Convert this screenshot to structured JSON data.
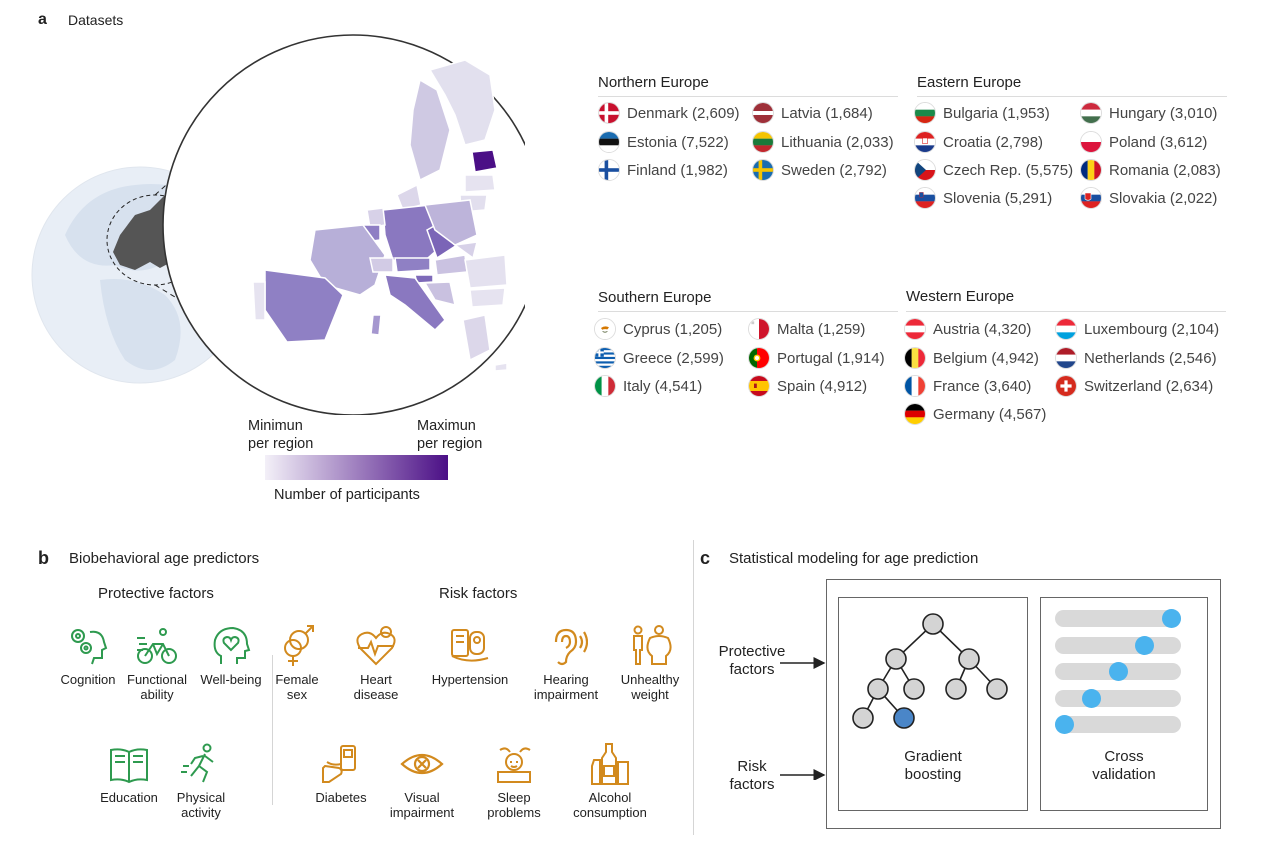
{
  "panel_a": {
    "letter": "a",
    "title": "Datasets",
    "regions": [
      {
        "name": "Northern Europe",
        "countries": [
          {
            "label": "Denmark (2,609)",
            "flag": "denmark"
          },
          {
            "label": "Latvia (1,684)",
            "flag": "latvia"
          },
          {
            "label": "Estonia (7,522)",
            "flag": "estonia"
          },
          {
            "label": "Lithuania (2,033)",
            "flag": "lithuania"
          },
          {
            "label": "Finland (1,982)",
            "flag": "finland"
          },
          {
            "label": "Sweden (2,792)",
            "flag": "sweden"
          }
        ]
      },
      {
        "name": "Eastern Europe",
        "countries": [
          {
            "label": "Bulgaria (1,953)",
            "flag": "bulgaria"
          },
          {
            "label": "Hungary (3,010)",
            "flag": "hungary"
          },
          {
            "label": "Croatia (2,798)",
            "flag": "croatia"
          },
          {
            "label": "Poland (3,612)",
            "flag": "poland"
          },
          {
            "label": "Czech Rep. (5,575)",
            "flag": "czech"
          },
          {
            "label": "Romania (2,083)",
            "flag": "romania"
          },
          {
            "label": "Slovenia (5,291)",
            "flag": "slovenia"
          },
          {
            "label": "Slovakia (2,022)",
            "flag": "slovakia"
          }
        ]
      },
      {
        "name": "Southern Europe",
        "countries": [
          {
            "label": "Cyprus (1,205)",
            "flag": "cyprus"
          },
          {
            "label": "Malta (1,259)",
            "flag": "malta"
          },
          {
            "label": "Greece (2,599)",
            "flag": "greece"
          },
          {
            "label": "Portugal (1,914)",
            "flag": "portugal"
          },
          {
            "label": "Italy (4,541)",
            "flag": "italy"
          },
          {
            "label": "Spain (4,912)",
            "flag": "spain"
          }
        ]
      },
      {
        "name": "Western Europe",
        "countries": [
          {
            "label": "Austria (4,320)",
            "flag": "austria"
          },
          {
            "label": "Luxembourg (2,104)",
            "flag": "luxembourg"
          },
          {
            "label": "Belgium (4,942)",
            "flag": "belgium"
          },
          {
            "label": "Netherlands (2,546)",
            "flag": "netherlands"
          },
          {
            "label": "France (3,640)",
            "flag": "france"
          },
          {
            "label": "Switzerland (2,634)",
            "flag": "switzerland"
          },
          {
            "label": "Germany (4,567)",
            "flag": "germany"
          }
        ]
      }
    ],
    "legend": {
      "min_line1": "Minimun",
      "min_line2": "per region",
      "max_line1": "Maximun",
      "max_line2": "per region",
      "caption": "Number of participants",
      "color_min": "#f3f0f8",
      "color_max": "#4b0f86"
    }
  },
  "panel_b": {
    "letter": "b",
    "title": "Biobehavioral age predictors",
    "protective_title": "Protective factors",
    "risk_title": "Risk factors",
    "protective_color": "#2e9a4f",
    "risk_color": "#d28a1e",
    "protective": [
      {
        "l1": "Cognition",
        "l2": "",
        "icon": "brain-gears-icon"
      },
      {
        "l1": "Functional",
        "l2": "ability",
        "icon": "cyclist-icon"
      },
      {
        "l1": "Well-being",
        "l2": "",
        "icon": "heart-head-icon"
      },
      {
        "l1": "Education",
        "l2": "",
        "icon": "book-icon"
      },
      {
        "l1": "Physical",
        "l2": "activity",
        "icon": "runner-icon"
      }
    ],
    "risk": [
      {
        "l1": "Female",
        "l2": "sex",
        "icon": "gender-icon"
      },
      {
        "l1": "Heart",
        "l2": "disease",
        "icon": "heart-disease-icon"
      },
      {
        "l1": "Hypertension",
        "l2": "",
        "icon": "blood-pressure-icon"
      },
      {
        "l1": "Hearing",
        "l2": "impairment",
        "icon": "ear-icon"
      },
      {
        "l1": "Unhealthy",
        "l2": "weight",
        "icon": "body-weight-icon"
      },
      {
        "l1": "Diabetes",
        "l2": "",
        "icon": "glucose-meter-icon"
      },
      {
        "l1": "Visual",
        "l2": "impairment",
        "icon": "eye-icon"
      },
      {
        "l1": "Sleep",
        "l2": "problems",
        "icon": "sleep-icon"
      },
      {
        "l1": "Alcohol",
        "l2": "consumption",
        "icon": "bottles-icon"
      }
    ]
  },
  "panel_c": {
    "letter": "c",
    "title": "Statistical modeling for age prediction",
    "input_protective_l1": "Protective",
    "input_protective_l2": "factors",
    "input_risk_l1": "Risk",
    "input_risk_l2": "factors",
    "gb_l1": "Gradient",
    "gb_l2": "boosting",
    "cv_l1": "Cross",
    "cv_l2": "validation",
    "cv_positions": [
      1.0,
      0.75,
      0.5,
      0.25,
      0.0
    ],
    "accent_color": "#4ab3ee"
  }
}
